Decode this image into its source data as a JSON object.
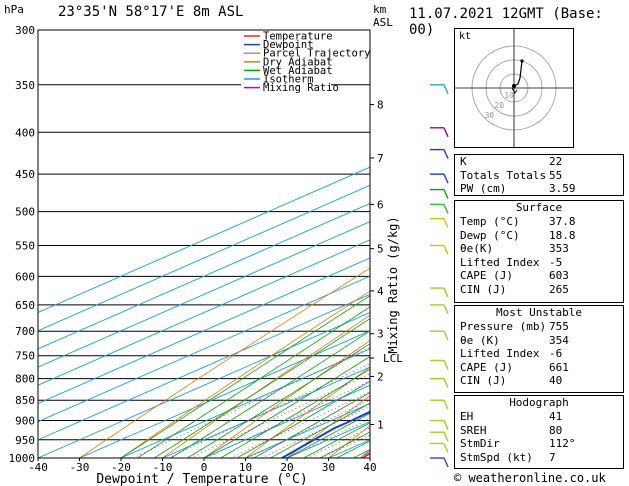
{
  "header": {
    "pressure_unit": "hPa",
    "location": "23°35'N  58°17'E  8m  ASL",
    "height_unit_1": "km",
    "height_unit_2": "ASL",
    "datetime": "11.07.2021  12GMT  (Base: 00)"
  },
  "footer": {
    "copyright": "© weatheronline.co.uk"
  },
  "hodograph": {
    "unit_label": "kt",
    "ring_labels": [
      "10",
      "20",
      "30"
    ]
  },
  "stats_panel": {
    "indices": [
      {
        "label": "K",
        "value": "22"
      },
      {
        "label": "Totals Totals",
        "value": "55"
      },
      {
        "label": "PW (cm)",
        "value": "3.59"
      }
    ],
    "surface": {
      "title": "Surface",
      "rows": [
        {
          "label": "Temp (°C)",
          "value": "37.8"
        },
        {
          "label": "Dewp (°C)",
          "value": "18.8"
        },
        {
          "label": "θe(K)",
          "value": "353"
        },
        {
          "label": "Lifted Index",
          "value": "-5"
        },
        {
          "label": "CAPE (J)",
          "value": "603"
        },
        {
          "label": "CIN (J)",
          "value": "265"
        }
      ]
    },
    "most_unstable": {
      "title": "Most Unstable",
      "rows": [
        {
          "label": "Pressure (mb)",
          "value": "755"
        },
        {
          "label": "θe (K)",
          "value": "354"
        },
        {
          "label": "Lifted Index",
          "value": "-6"
        },
        {
          "label": "CAPE (J)",
          "value": "661"
        },
        {
          "label": "CIN (J)",
          "value": "40"
        }
      ]
    },
    "hodograph_stats": {
      "title": "Hodograph",
      "rows": [
        {
          "label": "EH",
          "value": "41"
        },
        {
          "label": "SREH",
          "value": "80"
        },
        {
          "label": "StmDir",
          "value": "112°"
        },
        {
          "label": "StmSpd (kt)",
          "value": "7"
        }
      ]
    }
  },
  "chart_data": {
    "type": "line",
    "xlabel": "Dewpoint / Temperature (°C)",
    "ylabel": "Mixing Ratio (g/kg)",
    "xlim": [
      -40,
      40
    ],
    "ylim": [
      1000,
      300
    ],
    "y_scale": "log",
    "pressure_ticks": [
      300,
      350,
      400,
      450,
      500,
      550,
      600,
      650,
      700,
      750,
      800,
      850,
      900,
      950,
      1000
    ],
    "temperature_ticks": [
      -40,
      -30,
      -20,
      -10,
      0,
      10,
      20,
      30,
      40
    ],
    "km_ticks": [
      {
        "km": "1",
        "p": 910
      },
      {
        "km": "2",
        "p": 795
      },
      {
        "km": "3",
        "p": 705
      },
      {
        "km": "4",
        "p": 625
      },
      {
        "km": "5",
        "p": 555
      },
      {
        "km": "6",
        "p": 490
      },
      {
        "km": "7",
        "p": 430
      },
      {
        "km": "8",
        "p": 370
      }
    ],
    "lcl": {
      "label": "LCL",
      "p": 755
    },
    "mixing_ratio_labels": [
      "1",
      "2",
      "3",
      "4",
      "6",
      "8",
      "10",
      "15",
      "20",
      "25"
    ],
    "mixing_ratios": [
      1,
      2,
      3,
      4,
      6,
      8,
      10,
      15,
      20,
      25
    ],
    "legend": [
      {
        "name": "Temperature",
        "color": "#e8262a"
      },
      {
        "name": "Dewpoint",
        "color": "#1a3fdc"
      },
      {
        "name": "Parcel Trajectory",
        "color": "#9a9a9a"
      },
      {
        "name": "Dry Adiabat",
        "color": "#e87a00"
      },
      {
        "name": "Wet Adiabat",
        "color": "#00a800"
      },
      {
        "name": "Isotherm",
        "color": "#19a0e0"
      },
      {
        "name": "Mixing Ratio",
        "color": "#c800c8"
      }
    ],
    "series": [
      {
        "name": "Temperature",
        "points": [
          [
            1000,
            38
          ],
          [
            950,
            36
          ],
          [
            900,
            31.5
          ],
          [
            850,
            27
          ],
          [
            800,
            23
          ],
          [
            760,
            19
          ],
          [
            750,
            21
          ],
          [
            700,
            17
          ],
          [
            650,
            11.5
          ],
          [
            600,
            6
          ],
          [
            550,
            0
          ],
          [
            500,
            -7
          ],
          [
            450,
            -14
          ],
          [
            420,
            -16
          ],
          [
            400,
            -21
          ],
          [
            380,
            -28
          ],
          [
            370,
            -33
          ]
        ]
      },
      {
        "name": "Dewpoint",
        "points": [
          [
            1000,
            18.8
          ],
          [
            950,
            16.5
          ],
          [
            920,
            15
          ],
          [
            900,
            15
          ],
          [
            850,
            14
          ],
          [
            800,
            12
          ],
          [
            760,
            10.5
          ],
          [
            750,
            2
          ],
          [
            700,
            -6
          ],
          [
            650,
            -8
          ],
          [
            600,
            -11
          ],
          [
            550,
            -17
          ],
          [
            500,
            -19
          ],
          [
            450,
            -26
          ],
          [
            420,
            -31
          ],
          [
            400,
            -27
          ],
          [
            375,
            -31
          ],
          [
            370,
            -55
          ],
          [
            362,
            -68
          ]
        ]
      },
      {
        "name": "Parcel Trajectory",
        "points": [
          [
            1000,
            37.8
          ],
          [
            900,
            27.5
          ],
          [
            800,
            17
          ],
          [
            755,
            12.5
          ],
          [
            700,
            9
          ],
          [
            650,
            5
          ],
          [
            600,
            0.5
          ],
          [
            550,
            -4.5
          ],
          [
            500,
            -10
          ],
          [
            450,
            -16.5
          ],
          [
            400,
            -24
          ],
          [
            370,
            -29
          ]
        ]
      }
    ]
  }
}
